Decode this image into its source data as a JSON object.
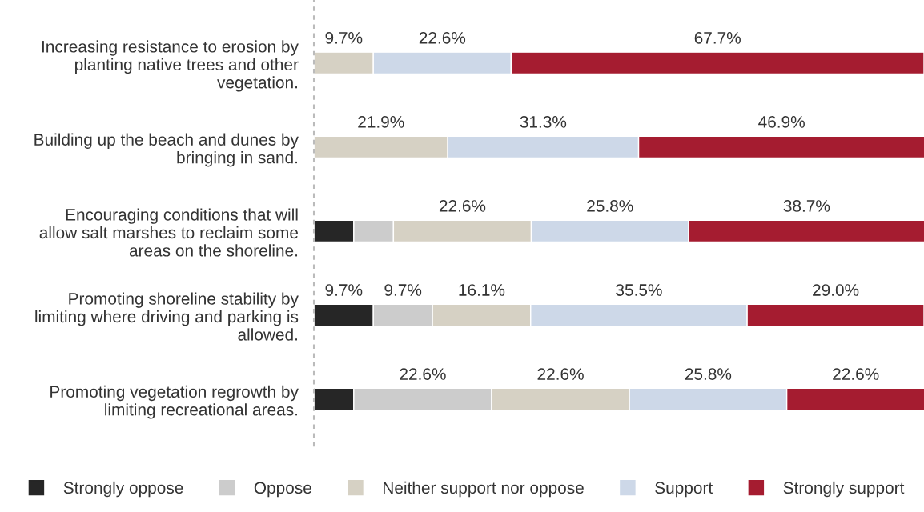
{
  "chart_data": {
    "type": "bar",
    "orientation": "horizontal",
    "stacked": true,
    "xlim": [
      0,
      100
    ],
    "tick_labels": "y",
    "legend": "bottom",
    "categories": [
      "Increasing resistance to erosion by\nplanting native trees and other\nvegetation.",
      "Building up the beach and dunes by\nbringing in sand.",
      "Encouraging conditions that will\nallow salt marshes to reclaim some\nareas on the shoreline.",
      "Promoting shoreline stability by\nlimiting where driving and parking is\nallowed.",
      "Promoting vegetation regrowth by\nlimiting recreational areas."
    ],
    "series": [
      {
        "name": "Strongly oppose",
        "color": "#262626",
        "values": [
          null,
          null,
          6.5,
          9.7,
          6.5
        ],
        "value_labels": [
          null,
          null,
          null,
          "9.7%",
          null
        ]
      },
      {
        "name": "Oppose",
        "color": "#cccccc",
        "values": [
          null,
          null,
          6.5,
          9.7,
          22.6
        ],
        "value_labels": [
          null,
          null,
          null,
          "9.7%",
          "22.6%"
        ]
      },
      {
        "name": "Neither support nor oppose",
        "color": "#d6d1c4",
        "values": [
          9.7,
          21.9,
          22.6,
          16.1,
          22.6
        ],
        "value_labels": [
          "9.7%",
          "21.9%",
          "22.6%",
          "16.1%",
          "22.6%"
        ]
      },
      {
        "name": "Support",
        "color": "#cdd8e8",
        "values": [
          22.6,
          31.3,
          25.8,
          35.5,
          25.8
        ],
        "value_labels": [
          "22.6%",
          "31.3%",
          "25.8%",
          "35.5%",
          "25.8%"
        ]
      },
      {
        "name": "Strongly support",
        "color": "#a51c30",
        "values": [
          67.7,
          46.9,
          38.7,
          29.0,
          22.6
        ],
        "value_labels": [
          "67.7%",
          "46.9%",
          "38.7%",
          "29.0%",
          "22.6%"
        ]
      }
    ]
  }
}
